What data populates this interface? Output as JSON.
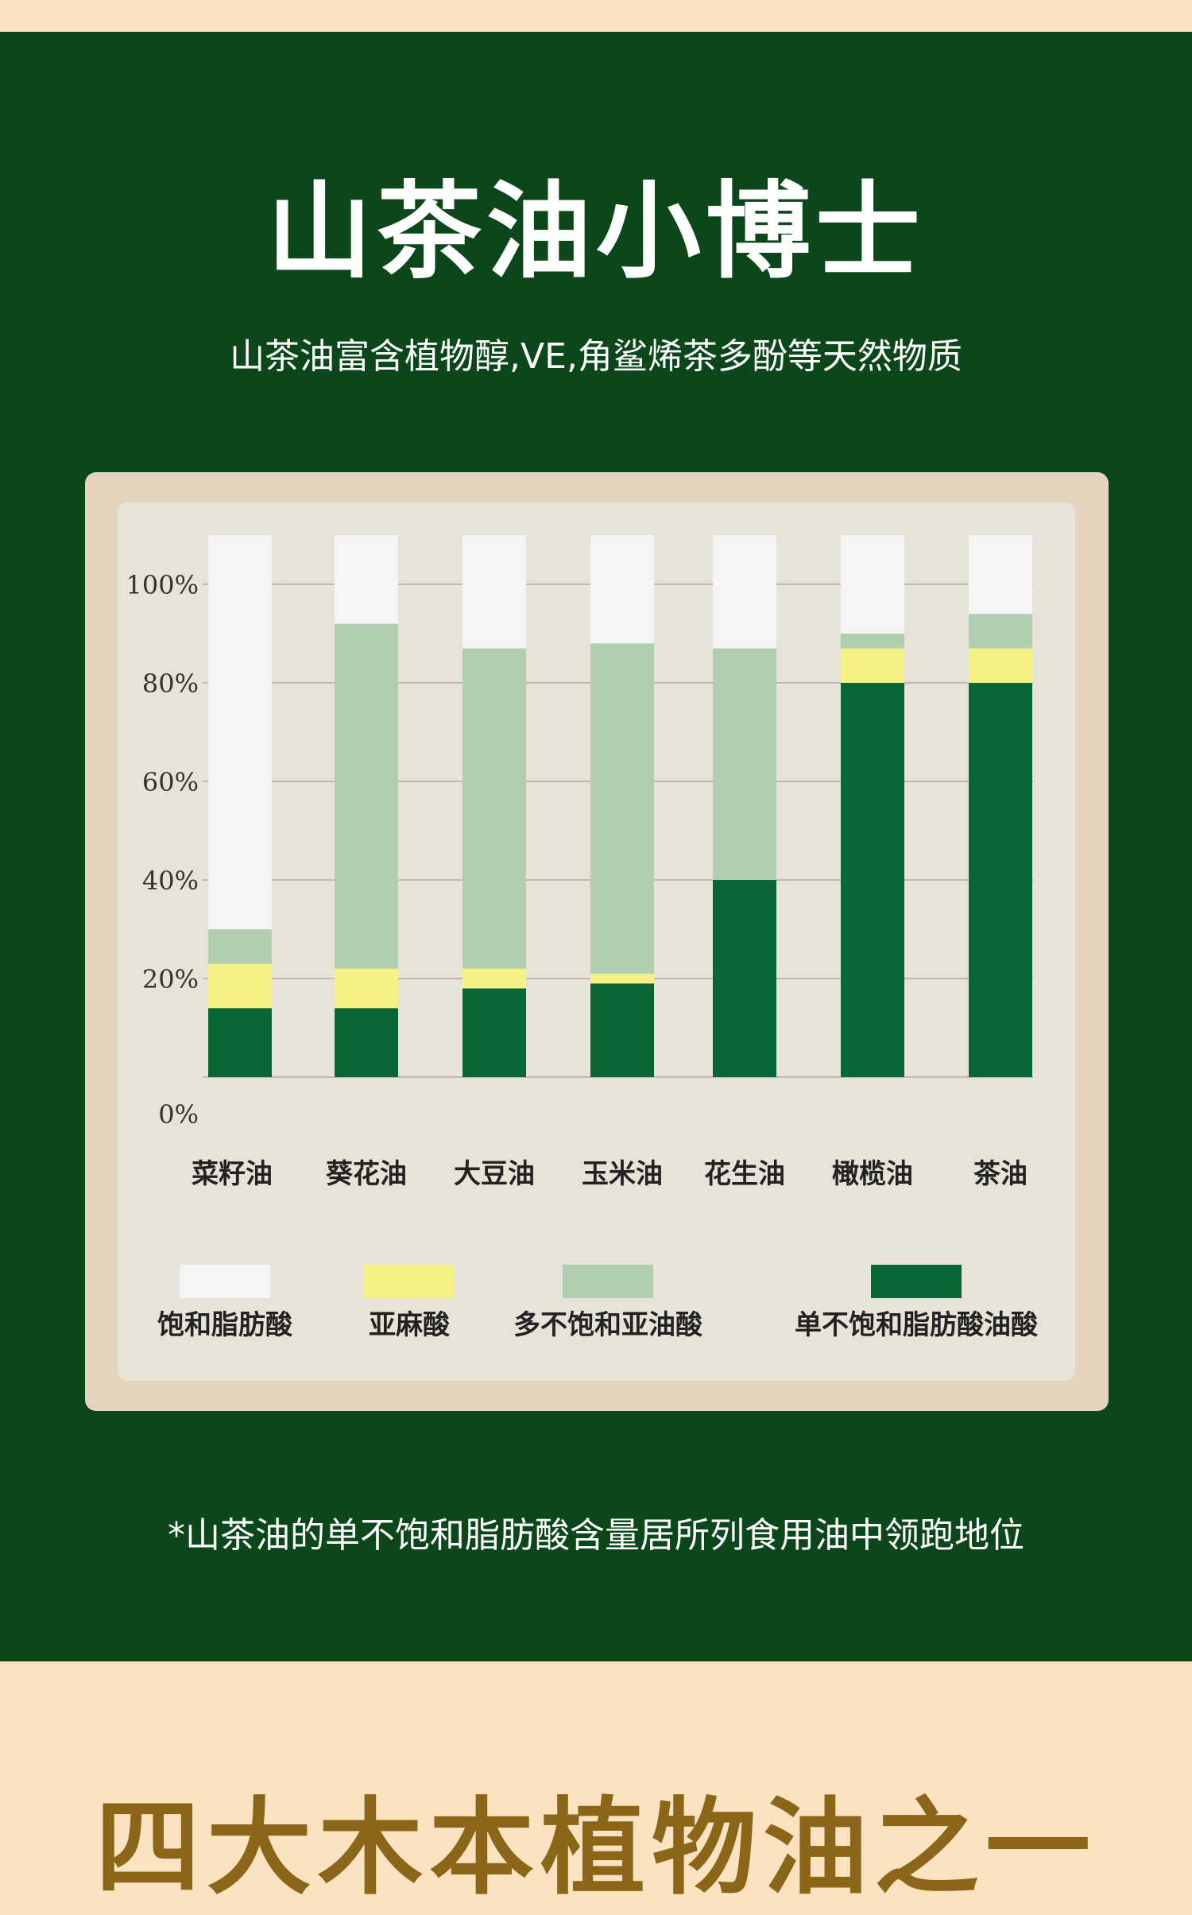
{
  "header": {
    "title": "山茶油小博士",
    "subtitle": "山茶油富含植物醇,VE,角鲨烯茶多酚等天然物质"
  },
  "footnote": "*山茶油的单不饱和脂肪酸含量居所列食用油中领跑地位",
  "next_section": {
    "title": "四大木本植物油之一"
  },
  "colors": {
    "panel_green": "#0c471c",
    "saturated": "#f5f5f5",
    "linolenic": "#f5f184",
    "polyunsaturated": "#b2ceb1",
    "monounsaturated": "#086734",
    "bottom_title": "#8b6518"
  },
  "chart_data": {
    "type": "bar",
    "stacked": true,
    "title": "",
    "xlabel": "",
    "ylabel": "",
    "ylim": [
      0,
      100
    ],
    "yticks": [
      "0%",
      "20%",
      "40%",
      "60%",
      "80%",
      "100%"
    ],
    "ytick_values": [
      0,
      20,
      40,
      60,
      80,
      100
    ],
    "grid": true,
    "legend_position": "bottom",
    "categories": [
      "菜籽油",
      "葵花油",
      "大豆油",
      "玉米油",
      "花生油",
      "橄榄油",
      "茶油"
    ],
    "series": [
      {
        "name": "单不饱和脂肪酸油酸",
        "color": "#086734",
        "values": [
          14,
          14,
          18,
          19,
          40,
          80,
          80
        ]
      },
      {
        "name": "亚麻酸",
        "color": "#f5f184",
        "values": [
          9,
          8,
          4,
          2,
          0,
          7,
          7
        ]
      },
      {
        "name": "多不饱和亚油酸",
        "color": "#b2ceb1",
        "values": [
          7,
          70,
          65,
          67,
          47,
          3,
          7
        ]
      },
      {
        "name": "饱和脂肪酸",
        "color": "#f5f5f5",
        "values": [
          80,
          18,
          23,
          22,
          23,
          20,
          16
        ]
      }
    ],
    "legend_order": [
      "饱和脂肪酸",
      "亚麻酸",
      "多不饱和亚油酸",
      "单不饱和脂肪酸油酸"
    ]
  }
}
